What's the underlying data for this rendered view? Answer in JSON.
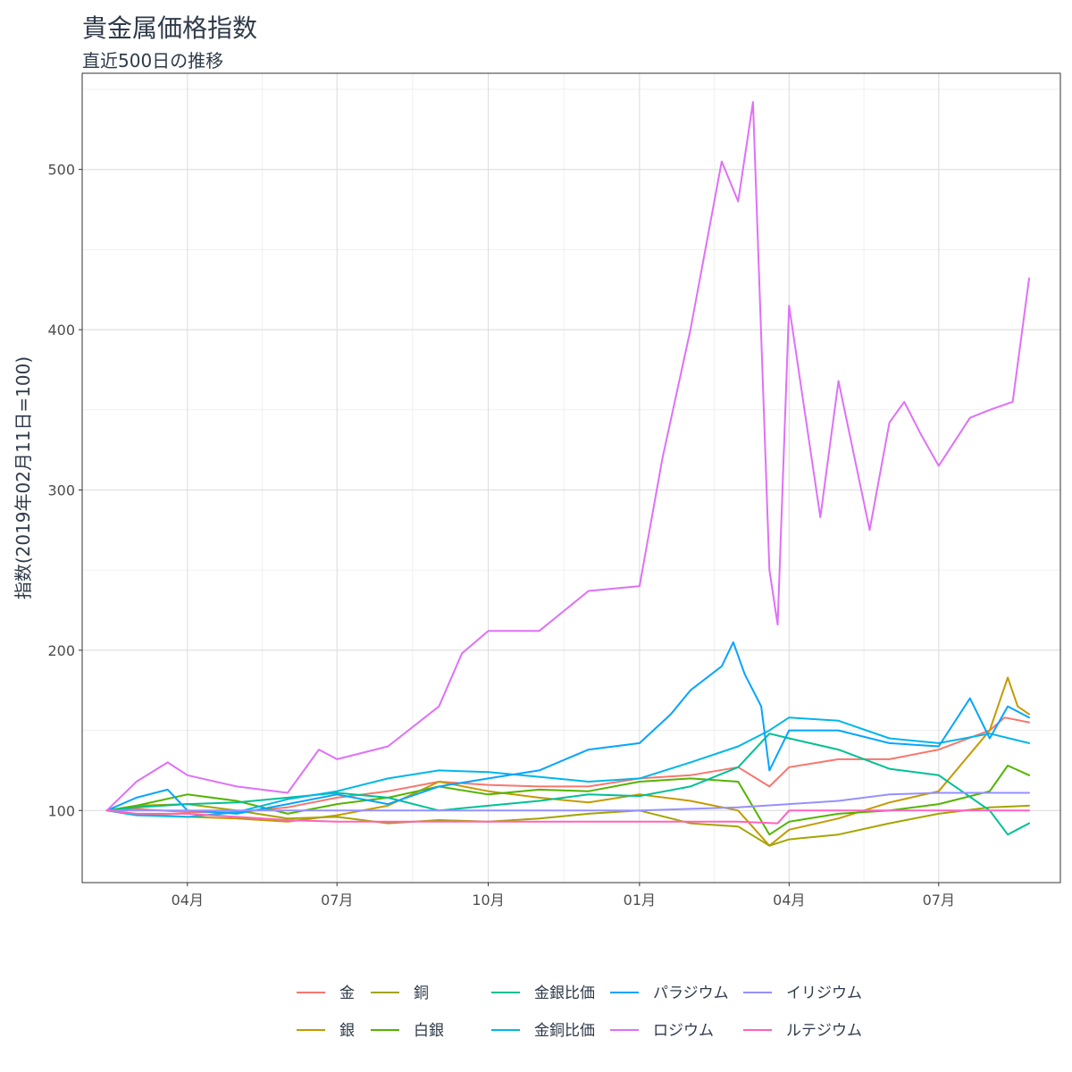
{
  "chart_data": {
    "type": "line",
    "title": "貴金属価格指数",
    "subtitle": "直近500日の推移",
    "ylabel": "指数(2019年02月11日=100)",
    "xlabel": "",
    "x_range": [
      "2019-02-11",
      "2020-08-31"
    ],
    "ylim": [
      55,
      560
    ],
    "yticks": [
      100,
      200,
      300,
      400,
      500
    ],
    "xticks": [
      {
        "date": "2019-04-01",
        "label": "04月"
      },
      {
        "date": "2019-07-01",
        "label": "07月"
      },
      {
        "date": "2019-10-01",
        "label": "10月"
      },
      {
        "date": "2020-01-01",
        "label": "01月"
      },
      {
        "date": "2020-04-01",
        "label": "04月"
      },
      {
        "date": "2020-07-01",
        "label": "07月"
      }
    ],
    "grid": true,
    "legend_position": "bottom",
    "series": [
      {
        "name": "金",
        "color": "#F8766D",
        "points": [
          [
            "2019-02-11",
            100
          ],
          [
            "2019-03-01",
            101
          ],
          [
            "2019-04-01",
            99
          ],
          [
            "2019-05-01",
            99
          ],
          [
            "2019-06-01",
            102
          ],
          [
            "2019-07-01",
            108
          ],
          [
            "2019-08-01",
            112
          ],
          [
            "2019-09-01",
            118
          ],
          [
            "2019-10-01",
            116
          ],
          [
            "2019-11-01",
            115
          ],
          [
            "2019-12-01",
            115
          ],
          [
            "2020-01-01",
            120
          ],
          [
            "2020-02-01",
            122
          ],
          [
            "2020-03-01",
            127
          ],
          [
            "2020-03-20",
            115
          ],
          [
            "2020-04-01",
            127
          ],
          [
            "2020-05-01",
            132
          ],
          [
            "2020-06-01",
            132
          ],
          [
            "2020-07-01",
            138
          ],
          [
            "2020-08-01",
            150
          ],
          [
            "2020-08-10",
            158
          ],
          [
            "2020-08-25",
            155
          ]
        ]
      },
      {
        "name": "銀",
        "color": "#C49A00",
        "points": [
          [
            "2019-02-11",
            100
          ],
          [
            "2019-03-01",
            98
          ],
          [
            "2019-04-01",
            96
          ],
          [
            "2019-05-01",
            95
          ],
          [
            "2019-06-01",
            93
          ],
          [
            "2019-07-01",
            97
          ],
          [
            "2019-08-01",
            103
          ],
          [
            "2019-09-01",
            118
          ],
          [
            "2019-10-01",
            112
          ],
          [
            "2019-11-01",
            108
          ],
          [
            "2019-12-01",
            105
          ],
          [
            "2020-01-01",
            110
          ],
          [
            "2020-02-01",
            106
          ],
          [
            "2020-03-01",
            100
          ],
          [
            "2020-03-20",
            78
          ],
          [
            "2020-04-01",
            88
          ],
          [
            "2020-05-01",
            95
          ],
          [
            "2020-06-01",
            105
          ],
          [
            "2020-07-01",
            112
          ],
          [
            "2020-08-01",
            150
          ],
          [
            "2020-08-12",
            183
          ],
          [
            "2020-08-18",
            165
          ],
          [
            "2020-08-25",
            160
          ]
        ]
      },
      {
        "name": "銅",
        "color": "#A3A500",
        "points": [
          [
            "2019-02-11",
            100
          ],
          [
            "2019-03-01",
            103
          ],
          [
            "2019-04-01",
            104
          ],
          [
            "2019-05-01",
            100
          ],
          [
            "2019-06-01",
            95
          ],
          [
            "2019-07-01",
            96
          ],
          [
            "2019-08-01",
            92
          ],
          [
            "2019-09-01",
            94
          ],
          [
            "2019-10-01",
            93
          ],
          [
            "2019-11-01",
            95
          ],
          [
            "2019-12-01",
            98
          ],
          [
            "2020-01-01",
            100
          ],
          [
            "2020-02-01",
            92
          ],
          [
            "2020-03-01",
            90
          ],
          [
            "2020-03-20",
            78
          ],
          [
            "2020-04-01",
            82
          ],
          [
            "2020-05-01",
            85
          ],
          [
            "2020-06-01",
            92
          ],
          [
            "2020-07-01",
            98
          ],
          [
            "2020-08-01",
            102
          ],
          [
            "2020-08-25",
            103
          ]
        ]
      },
      {
        "name": "白銀",
        "color": "#53B400",
        "points": [
          [
            "2019-02-11",
            100
          ],
          [
            "2019-03-01",
            103
          ],
          [
            "2019-04-01",
            110
          ],
          [
            "2019-05-01",
            106
          ],
          [
            "2019-06-01",
            98
          ],
          [
            "2019-07-01",
            104
          ],
          [
            "2019-08-01",
            108
          ],
          [
            "2019-09-01",
            115
          ],
          [
            "2019-10-01",
            110
          ],
          [
            "2019-11-01",
            113
          ],
          [
            "2019-12-01",
            112
          ],
          [
            "2020-01-01",
            118
          ],
          [
            "2020-02-01",
            120
          ],
          [
            "2020-03-01",
            118
          ],
          [
            "2020-03-20",
            85
          ],
          [
            "2020-04-01",
            93
          ],
          [
            "2020-05-01",
            98
          ],
          [
            "2020-06-01",
            100
          ],
          [
            "2020-07-01",
            104
          ],
          [
            "2020-08-01",
            112
          ],
          [
            "2020-08-12",
            128
          ],
          [
            "2020-08-25",
            122
          ]
        ]
      },
      {
        "name": "金銀比価",
        "color": "#00C094",
        "points": [
          [
            "2019-02-11",
            100
          ],
          [
            "2019-03-01",
            102
          ],
          [
            "2019-04-01",
            104
          ],
          [
            "2019-05-01",
            105
          ],
          [
            "2019-06-01",
            108
          ],
          [
            "2019-07-01",
            111
          ],
          [
            "2019-08-01",
            108
          ],
          [
            "2019-09-01",
            100
          ],
          [
            "2019-10-01",
            103
          ],
          [
            "2019-11-01",
            106
          ],
          [
            "2019-12-01",
            110
          ],
          [
            "2020-01-01",
            109
          ],
          [
            "2020-02-01",
            115
          ],
          [
            "2020-03-01",
            127
          ],
          [
            "2020-03-20",
            148
          ],
          [
            "2020-04-01",
            145
          ],
          [
            "2020-05-01",
            138
          ],
          [
            "2020-06-01",
            126
          ],
          [
            "2020-07-01",
            122
          ],
          [
            "2020-08-01",
            100
          ],
          [
            "2020-08-12",
            85
          ],
          [
            "2020-08-25",
            92
          ]
        ]
      },
      {
        "name": "金銅比価",
        "color": "#00B6EB",
        "points": [
          [
            "2019-02-11",
            100
          ],
          [
            "2019-03-01",
            97
          ],
          [
            "2019-04-01",
            96
          ],
          [
            "2019-05-01",
            99
          ],
          [
            "2019-06-01",
            107
          ],
          [
            "2019-07-01",
            112
          ],
          [
            "2019-08-01",
            120
          ],
          [
            "2019-09-01",
            125
          ],
          [
            "2019-10-01",
            124
          ],
          [
            "2019-11-01",
            121
          ],
          [
            "2019-12-01",
            118
          ],
          [
            "2020-01-01",
            120
          ],
          [
            "2020-02-01",
            130
          ],
          [
            "2020-03-01",
            140
          ],
          [
            "2020-03-20",
            150
          ],
          [
            "2020-04-01",
            158
          ],
          [
            "2020-05-01",
            156
          ],
          [
            "2020-06-01",
            145
          ],
          [
            "2020-07-01",
            142
          ],
          [
            "2020-08-01",
            148
          ],
          [
            "2020-08-25",
            142
          ]
        ]
      },
      {
        "name": "パラジウム",
        "color": "#06A4FF",
        "points": [
          [
            "2019-02-11",
            100
          ],
          [
            "2019-03-01",
            108
          ],
          [
            "2019-03-20",
            113
          ],
          [
            "2019-04-01",
            100
          ],
          [
            "2019-05-01",
            98
          ],
          [
            "2019-06-01",
            104
          ],
          [
            "2019-07-01",
            110
          ],
          [
            "2019-08-01",
            104
          ],
          [
            "2019-09-01",
            115
          ],
          [
            "2019-10-01",
            120
          ],
          [
            "2019-11-01",
            125
          ],
          [
            "2019-12-01",
            138
          ],
          [
            "2020-01-01",
            142
          ],
          [
            "2020-01-20",
            160
          ],
          [
            "2020-02-01",
            175
          ],
          [
            "2020-02-20",
            190
          ],
          [
            "2020-02-27",
            205
          ],
          [
            "2020-03-05",
            185
          ],
          [
            "2020-03-15",
            165
          ],
          [
            "2020-03-20",
            125
          ],
          [
            "2020-04-01",
            150
          ],
          [
            "2020-05-01",
            150
          ],
          [
            "2020-06-01",
            142
          ],
          [
            "2020-07-01",
            140
          ],
          [
            "2020-07-20",
            170
          ],
          [
            "2020-08-01",
            145
          ],
          [
            "2020-08-12",
            165
          ],
          [
            "2020-08-25",
            158
          ]
        ]
      },
      {
        "name": "ロジウム",
        "color": "#DF70F8",
        "points": [
          [
            "2019-02-11",
            100
          ],
          [
            "2019-03-01",
            118
          ],
          [
            "2019-03-20",
            130
          ],
          [
            "2019-04-01",
            122
          ],
          [
            "2019-05-01",
            115
          ],
          [
            "2019-06-01",
            111
          ],
          [
            "2019-06-20",
            138
          ],
          [
            "2019-07-01",
            132
          ],
          [
            "2019-08-01",
            140
          ],
          [
            "2019-09-01",
            165
          ],
          [
            "2019-09-15",
            198
          ],
          [
            "2019-10-01",
            212
          ],
          [
            "2019-11-01",
            212
          ],
          [
            "2019-12-01",
            237
          ],
          [
            "2020-01-01",
            240
          ],
          [
            "2020-01-15",
            320
          ],
          [
            "2020-02-01",
            400
          ],
          [
            "2020-02-20",
            505
          ],
          [
            "2020-03-01",
            480
          ],
          [
            "2020-03-10",
            542
          ],
          [
            "2020-03-20",
            250
          ],
          [
            "2020-03-25",
            216
          ],
          [
            "2020-04-01",
            415
          ],
          [
            "2020-04-20",
            283
          ],
          [
            "2020-05-01",
            368
          ],
          [
            "2020-05-20",
            275
          ],
          [
            "2020-06-01",
            342
          ],
          [
            "2020-06-10",
            355
          ],
          [
            "2020-06-20",
            335
          ],
          [
            "2020-07-01",
            315
          ],
          [
            "2020-07-20",
            345
          ],
          [
            "2020-08-01",
            350
          ],
          [
            "2020-08-15",
            355
          ],
          [
            "2020-08-25",
            432
          ]
        ]
      },
      {
        "name": "イリジウム",
        "color": "#9590FF",
        "points": [
          [
            "2019-02-11",
            100
          ],
          [
            "2019-06-01",
            100
          ],
          [
            "2019-10-01",
            100
          ],
          [
            "2020-01-01",
            100
          ],
          [
            "2020-03-01",
            102
          ],
          [
            "2020-04-01",
            104
          ],
          [
            "2020-05-01",
            106
          ],
          [
            "2020-06-01",
            110
          ],
          [
            "2020-07-01",
            111
          ],
          [
            "2020-08-25",
            111
          ]
        ]
      },
      {
        "name": "ルテジウム",
        "color": "#FF62BC",
        "points": [
          [
            "2019-02-11",
            100
          ],
          [
            "2019-03-01",
            98
          ],
          [
            "2019-04-01",
            98
          ],
          [
            "2019-05-01",
            96
          ],
          [
            "2019-06-01",
            94
          ],
          [
            "2019-07-01",
            93
          ],
          [
            "2019-09-01",
            93
          ],
          [
            "2019-12-01",
            93
          ],
          [
            "2020-03-01",
            93
          ],
          [
            "2020-03-25",
            92
          ],
          [
            "2020-04-01",
            100
          ],
          [
            "2020-06-01",
            100
          ],
          [
            "2020-08-25",
            100
          ]
        ]
      }
    ]
  }
}
